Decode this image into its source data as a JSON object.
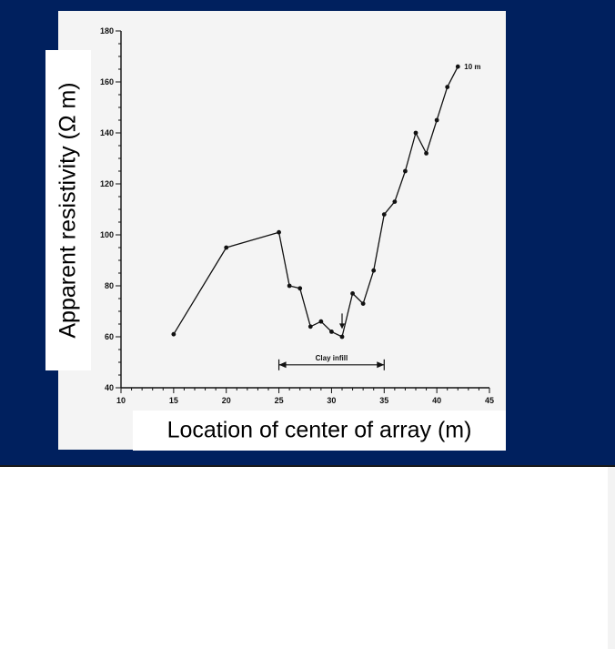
{
  "colors": {
    "banner": "#00205e",
    "figure_bg": "#f4f4f4",
    "ink": "#111111"
  },
  "chart_data": {
    "type": "line",
    "xlabel": "Location of center of array (m)",
    "ylabel": "Apparent resistivity (Ω m)",
    "xlim": [
      10,
      45
    ],
    "ylim": [
      40,
      180
    ],
    "x_ticks": [
      10,
      15,
      20,
      25,
      30,
      35,
      40,
      45
    ],
    "y_ticks": [
      40,
      60,
      80,
      100,
      120,
      140,
      160,
      180
    ],
    "grid": false,
    "series": [
      {
        "name": "10 m",
        "x": [
          15,
          20,
          25,
          26,
          27,
          28,
          29,
          30,
          31,
          32,
          33,
          34,
          35,
          36,
          37,
          38,
          39,
          40,
          41,
          42
        ],
        "y": [
          61,
          95,
          101,
          80,
          79,
          64,
          66,
          62,
          60,
          77,
          73,
          86,
          108,
          113,
          125,
          140,
          132,
          145,
          158,
          166
        ]
      }
    ],
    "annotations": [
      {
        "text": "Clay infill",
        "x_start": 25,
        "x_end": 35,
        "y": 49
      },
      {
        "text": "",
        "type": "arrow",
        "x": 31,
        "y": 62
      }
    ]
  }
}
